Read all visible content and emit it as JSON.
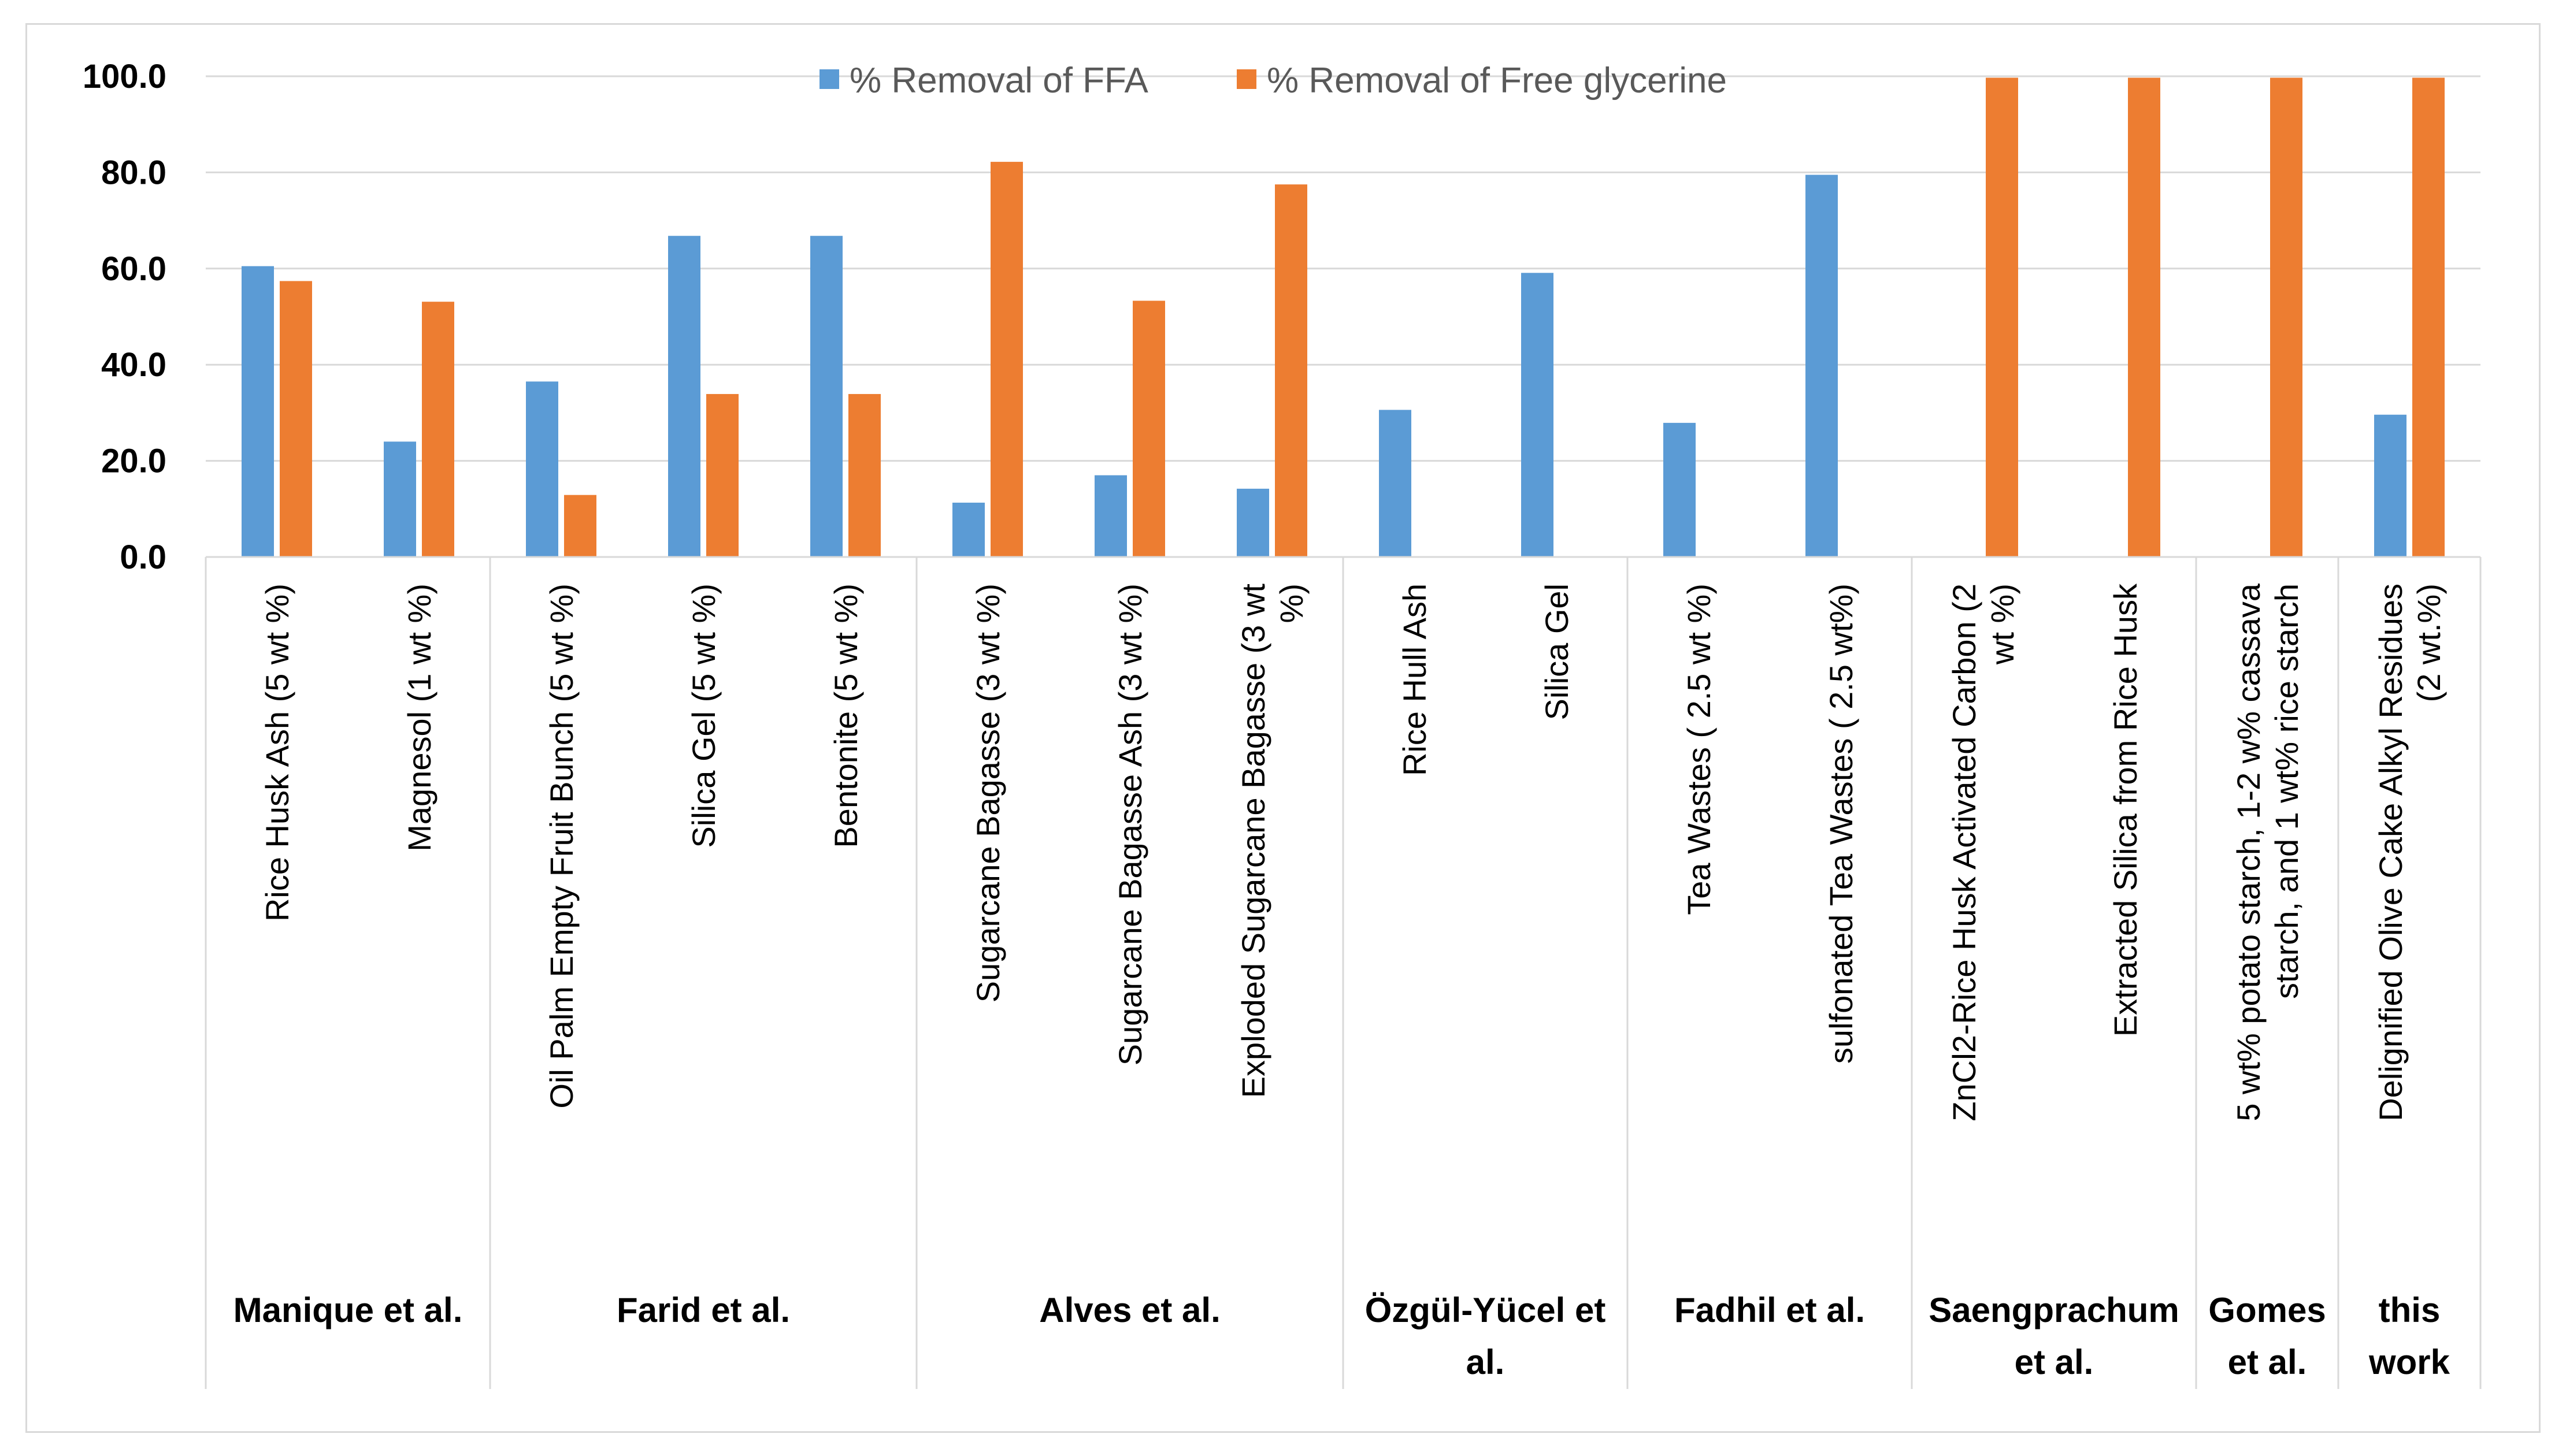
{
  "chart_data": {
    "type": "bar",
    "title": "",
    "xlabel": "",
    "ylabel": "",
    "ylim": [
      0,
      100
    ],
    "yticks": [
      "0.0",
      "20.0",
      "40.0",
      "60.0",
      "80.0",
      "100.0"
    ],
    "grid": true,
    "legend_position": "top",
    "colors": {
      "ffa": "#5b9bd5",
      "glycerine": "#ed7d31",
      "grid": "#d9d9d9",
      "axis": "#d9d9d9"
    },
    "categories": [
      [
        "Rice Husk Ash (5 wt %)"
      ],
      [
        "Magnesol (1 wt %)"
      ],
      [
        "Oil Palm Empty Fruit Bunch (5 wt %)"
      ],
      [
        "Silica Gel (5 wt %)"
      ],
      [
        "Bentonite (5 wt %)"
      ],
      [
        "Sugarcane Bagasse (3 wt %)"
      ],
      [
        "Sugarcane Bagasse Ash (3 wt %)"
      ],
      [
        "Exploded Sugarcane Bagasse (3 wt",
        "%)"
      ],
      [
        "Rice Hull Ash"
      ],
      [
        "Silica Gel"
      ],
      [
        "Tea Wastes ( 2.5 wt %)"
      ],
      [
        "sulfonated Tea Wastes ( 2.5 wt%)"
      ],
      [
        "ZnCl2-Rice Husk Activated Carbon (2",
        "wt %)"
      ],
      [
        "Extracted Silica from Rice Husk"
      ],
      [
        "5 wt% potato starch, 1-2 w% cassava",
        "starch, and 1 wt% rice starch"
      ],
      [
        "Delignified Olive Cake Alkyl Residues",
        "(2 wt.%)"
      ]
    ],
    "groups": [
      {
        "label": [
          "Manique et al."
        ],
        "count": 2
      },
      {
        "label": [
          "Farid et al."
        ],
        "count": 3
      },
      {
        "label": [
          "Alves et al."
        ],
        "count": 3
      },
      {
        "label": [
          "Özgül-Yücel et",
          "al."
        ],
        "count": 2
      },
      {
        "label": [
          "Fadhil et al."
        ],
        "count": 2
      },
      {
        "label": [
          "Saengprachum",
          "et al."
        ],
        "count": 2
      },
      {
        "label": [
          "Gomes",
          "et al."
        ],
        "count": 1
      },
      {
        "label": [
          "this",
          "work"
        ],
        "count": 1
      }
    ],
    "series": [
      {
        "name": "% Removal of FFA",
        "values": [
          60.5,
          24.0,
          36.5,
          66.8,
          66.8,
          11.3,
          17.0,
          14.2,
          30.6,
          59.1,
          27.9,
          79.5,
          0,
          0,
          0,
          29.6
        ]
      },
      {
        "name": "% Removal of Free glycerine",
        "values": [
          57.4,
          53.1,
          12.9,
          33.9,
          33.9,
          82.2,
          53.3,
          77.5,
          0,
          0,
          0,
          0,
          99.7,
          99.7,
          99.7,
          99.7
        ]
      }
    ]
  }
}
